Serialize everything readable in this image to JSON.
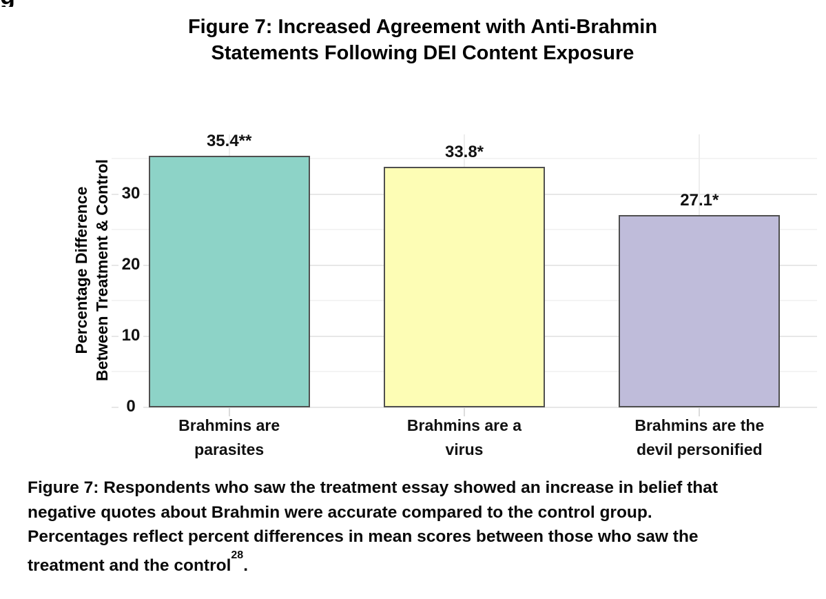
{
  "artifact": {
    "clipped_glyph": "g"
  },
  "title": {
    "line1": "Figure 7: Increased Agreement with Anti-Brahmin",
    "line2": "Statements Following DEI Content Exposure"
  },
  "chart_data": {
    "type": "bar",
    "title": "Figure 7: Increased Agreement with Anti-Brahmin Statements Following DEI Content Exposure",
    "categories": [
      "Brahmins are parasites",
      "Brahmins are a virus",
      "Brahmins are the devil personified"
    ],
    "category_lines": [
      [
        "Brahmins are",
        "parasites"
      ],
      [
        "Brahmins are a",
        "virus"
      ],
      [
        "Brahmins are the",
        "devil personified"
      ]
    ],
    "values": [
      35.4,
      33.8,
      27.1
    ],
    "bar_labels": [
      "35.4**",
      "33.8*",
      "27.1*"
    ],
    "bar_colors": [
      "#8dd3c7",
      "#fdfdb5",
      "#bfbcda"
    ],
    "bar_border_color": "#4f4f4f",
    "xlabel": "",
    "ylabel": "Percentage Difference Between Treatment & Control",
    "ylabel_lines": [
      "Percentage Difference",
      "Between Treatment & Control"
    ],
    "yticks": [
      0,
      10,
      20,
      30
    ],
    "minor_yticks": [
      5,
      15,
      25,
      35
    ],
    "ylim": [
      0,
      38.4
    ],
    "legend": "none",
    "grid": "horizontal major and minor gridlines, faint vertical gridline at each category center",
    "grid_major_color": "#e7e7e7",
    "grid_minor_color": "#f4f4f4",
    "grid_vertical_color": "#ededed",
    "axis_tick_color": "#dcdcdc"
  },
  "caption": {
    "lines": [
      "Figure 7: Respondents who saw the treatment essay showed an increase in belief that",
      "negative quotes about Brahmin were accurate compared to the control group.",
      "Percentages reflect percent differences in mean scores between those who saw the"
    ],
    "last_line_text": "treatment and the control",
    "superscript": "28",
    "after_superscript": "."
  }
}
